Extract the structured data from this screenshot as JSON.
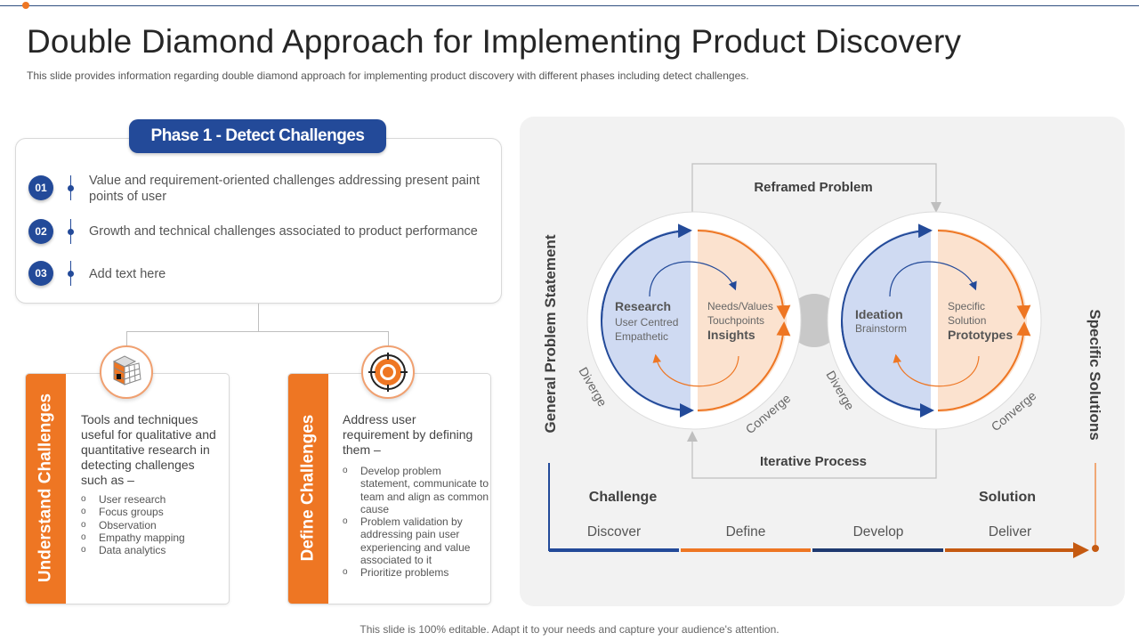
{
  "title": "Double Diamond Approach for Implementing Product Discovery",
  "subtitle": "This slide provides information regarding double diamond approach for implementing product discovery with different  phases including detect challenges.",
  "phase": {
    "label": "Phase 1 - Detect Challenges",
    "items": [
      {
        "num": "01",
        "text": "Value and requirement-oriented challenges addressing present paint points of user"
      },
      {
        "num": "02",
        "text": "Growth and technical challenges associated to product performance"
      },
      {
        "num": "03",
        "text": "Add text here"
      }
    ]
  },
  "understand": {
    "label": "Understand Challenges",
    "icon": "cube-icon",
    "text": "Tools and techniques useful for qualitative and quantitative research in detecting challenges such as –",
    "bullets": [
      "User research",
      "Focus groups",
      "Observation",
      "Empathy mapping",
      "Data analytics"
    ]
  },
  "define": {
    "label": "Define Challenges",
    "icon": "target-icon",
    "text": "Address user requirement by defining them –",
    "bullets": [
      "Develop problem statement, communicate to team and align as common cause",
      "Problem validation by addressing pain user experiencing and value associated to it",
      "Prioritize problems"
    ]
  },
  "diagram": {
    "left_label": "General Problem Statement",
    "right_label": "Specific Solutions",
    "top_label": "Reframed Problem",
    "bottom_label": "Iterative Process",
    "d1": {
      "title": "Research",
      "lines": [
        "User Centred",
        "Empathetic"
      ],
      "r_lines": [
        "Needs/Values",
        "Touchpoints"
      ],
      "r_title": "Insights"
    },
    "d2": {
      "title": "Ideation",
      "lines": [
        "Brainstorm"
      ],
      "r_lines": [
        "Specific",
        "Solution"
      ],
      "r_title": "Prototypes"
    },
    "diverge": "Diverge",
    "converge": "Converge",
    "challenge": "Challenge",
    "solution": "Solution",
    "stages": [
      "Discover",
      "Define",
      "Develop",
      "Deliver"
    ],
    "colors": {
      "blue": "#234a99",
      "orange": "#ee7623",
      "blue_fill": "#cfdaf2",
      "orange_fill": "#fbe2cf",
      "dark_orange": "#c55a11"
    }
  },
  "footer": "This slide is 100% editable. Adapt it to your needs and capture your audience's attention."
}
